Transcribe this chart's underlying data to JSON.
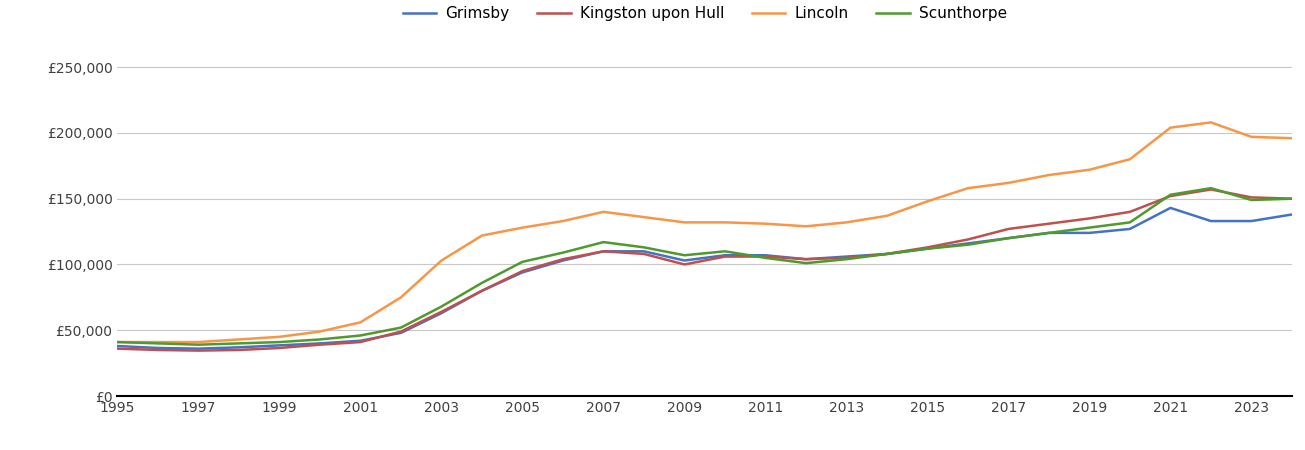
{
  "years": [
    1995,
    1996,
    1997,
    1998,
    1999,
    2000,
    2001,
    2002,
    2003,
    2004,
    2005,
    2006,
    2007,
    2008,
    2009,
    2010,
    2011,
    2012,
    2013,
    2014,
    2015,
    2016,
    2017,
    2018,
    2019,
    2020,
    2021,
    2022,
    2023,
    2024
  ],
  "grimsby": [
    38000,
    36500,
    36000,
    37000,
    38500,
    40000,
    42000,
    48000,
    63000,
    80000,
    94000,
    103000,
    110000,
    110000,
    103000,
    107000,
    107000,
    104000,
    106000,
    108000,
    112000,
    116000,
    120000,
    124000,
    124000,
    127000,
    143000,
    133000,
    133000,
    138000
  ],
  "kingston_upon_hull": [
    36000,
    35000,
    34500,
    35000,
    36500,
    39000,
    41000,
    49000,
    64000,
    80000,
    95000,
    104000,
    110000,
    108000,
    100000,
    106000,
    106000,
    104000,
    105000,
    108000,
    113000,
    119000,
    127000,
    131000,
    135000,
    140000,
    152000,
    157000,
    151000,
    150000
  ],
  "lincoln": [
    41000,
    41000,
    41000,
    43000,
    45000,
    49000,
    56000,
    75000,
    103000,
    122000,
    128000,
    133000,
    140000,
    136000,
    132000,
    132000,
    131000,
    129000,
    132000,
    137000,
    148000,
    158000,
    162000,
    168000,
    172000,
    180000,
    204000,
    208000,
    197000,
    196000
  ],
  "scunthorpe": [
    41000,
    40000,
    39000,
    40000,
    41000,
    43000,
    46000,
    52000,
    68000,
    86000,
    102000,
    109000,
    117000,
    113000,
    107000,
    110000,
    105000,
    101000,
    104000,
    108000,
    112000,
    115000,
    120000,
    124000,
    128000,
    132000,
    153000,
    158000,
    149000,
    150000
  ],
  "colors": {
    "grimsby": "#4472c4",
    "kingston_upon_hull": "#c0504d",
    "lincoln": "#f79646",
    "scunthorpe": "#4f9a2c"
  },
  "labels": {
    "grimsby": "Grimsby",
    "kingston_upon_hull": "Kingston upon Hull",
    "lincoln": "Lincoln",
    "scunthorpe": "Scunthorpe"
  },
  "ylim": [
    0,
    260000
  ],
  "yticks": [
    0,
    50000,
    100000,
    150000,
    200000,
    250000
  ],
  "xlim_min": 1995,
  "xlim_max": 2024,
  "xticks": [
    1995,
    1997,
    1999,
    2001,
    2003,
    2005,
    2007,
    2009,
    2011,
    2013,
    2015,
    2017,
    2019,
    2021,
    2023
  ],
  "background_color": "#ffffff",
  "grid_color": "#c8c8c8",
  "linewidth": 1.8
}
